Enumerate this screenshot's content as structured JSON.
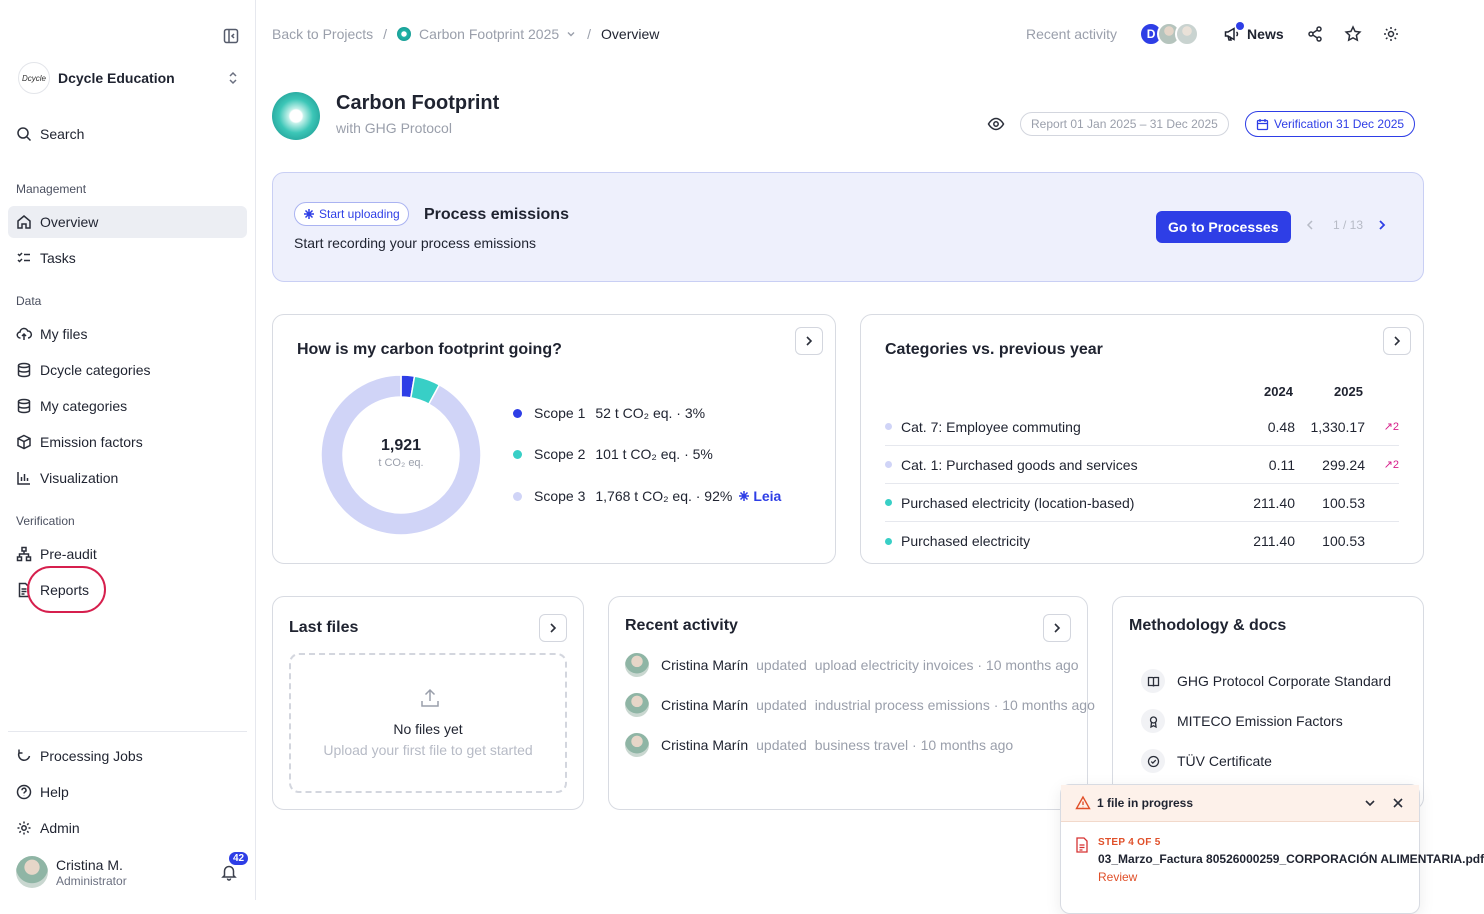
{
  "sidebar": {
    "org_logo_text": "Dcycle",
    "org_name": "Dcycle Education",
    "search": "Search",
    "sections": {
      "management": "Management",
      "data": "Data",
      "verification": "Verification"
    },
    "items": {
      "overview": "Overview",
      "tasks": "Tasks",
      "my_files": "My files",
      "dcycle_categories": "Dcycle categories",
      "my_categories": "My categories",
      "emission_factors": "Emission factors",
      "visualization": "Visualization",
      "pre_audit": "Pre-audit",
      "reports": "Reports",
      "processing_jobs": "Processing Jobs",
      "help": "Help",
      "admin": "Admin"
    },
    "user": {
      "name": "Cristina M.",
      "role": "Administrator",
      "notifications": "42"
    }
  },
  "topbar": {
    "breadcrumb": {
      "back": "Back to Projects",
      "sep": "/",
      "project": "Carbon Footprint 2025",
      "current": "Overview"
    },
    "recent_activity": "Recent activity",
    "avatar_initial": "D",
    "news": "News"
  },
  "header": {
    "title": "Carbon Footprint",
    "subtitle": "with GHG Protocol",
    "report_pill": "Report 01 Jan 2025 – 31 Dec 2025",
    "verification_pill": "Verification 31 Dec 2025"
  },
  "banner": {
    "badge": "Start uploading",
    "title": "Process emissions",
    "subtitle": "Start recording your process emissions",
    "button": "Go to Processes",
    "pager": "1 / 13"
  },
  "footprint_card": {
    "title": "How is my carbon footprint going?",
    "total": "1,921",
    "unit": "t CO₂ eq.",
    "leia": "Leia"
  },
  "chart_data": {
    "type": "pie",
    "total": 1921,
    "unit": "t CO₂ eq.",
    "series": [
      {
        "name": "Scope 1",
        "value": 52,
        "label": "52 t CO₂ eq. · 3%",
        "color": "#2e3ee6"
      },
      {
        "name": "Scope 2",
        "value": 101,
        "label": "101 t CO₂ eq. · 5%",
        "color": "#38cfc6"
      },
      {
        "name": "Scope 3",
        "value": 1768,
        "label": "1,768 t CO₂ eq. · 92%",
        "color": "#d0d4f7"
      }
    ]
  },
  "categories_card": {
    "title": "Categories vs. previous year",
    "col_2024": "2024",
    "col_2025": "2025",
    "rows": [
      {
        "name": "Cat. 7: Employee commuting",
        "v2024": "0.48",
        "v2025": "1,330.17",
        "trend": "↗2",
        "color": "#d0d4f7"
      },
      {
        "name": "Cat. 1: Purchased goods and services",
        "v2024": "0.11",
        "v2025": "299.24",
        "trend": "↗2",
        "color": "#d0d4f7"
      },
      {
        "name": "Purchased electricity (location-based)",
        "v2024": "211.40",
        "v2025": "100.53",
        "trend": "",
        "color": "#38cfc6"
      },
      {
        "name": "Purchased electricity",
        "v2024": "211.40",
        "v2025": "100.53",
        "trend": "",
        "color": "#38cfc6"
      }
    ]
  },
  "files_card": {
    "title": "Last files",
    "empty_title": "No files yet",
    "empty_sub": "Upload your first file to get started"
  },
  "activity_card": {
    "title": "Recent activity",
    "items": [
      {
        "who": "Cristina Marín",
        "verb": "updated",
        "what": "upload electricity invoices · 10 months ago"
      },
      {
        "who": "Cristina Marín",
        "verb": "updated",
        "what": "industrial process emissions · 10 months ago"
      },
      {
        "who": "Cristina Marín",
        "verb": "updated",
        "what": "business travel · 10 months ago"
      }
    ]
  },
  "docs_card": {
    "title": "Methodology & docs",
    "items": [
      {
        "label": "GHG Protocol Corporate Standard",
        "icon": "book-icon"
      },
      {
        "label": "MITECO Emission Factors",
        "icon": "award-icon"
      },
      {
        "label": "TÜV Certificate",
        "icon": "check-circle-icon"
      }
    ]
  },
  "toast": {
    "title": "1 file in progress",
    "step": "STEP 4 OF 5",
    "filename": "03_Marzo_Factura 80526000259_CORPORACIÓN ALIMENTARIA.pdf",
    "action": "Review"
  }
}
